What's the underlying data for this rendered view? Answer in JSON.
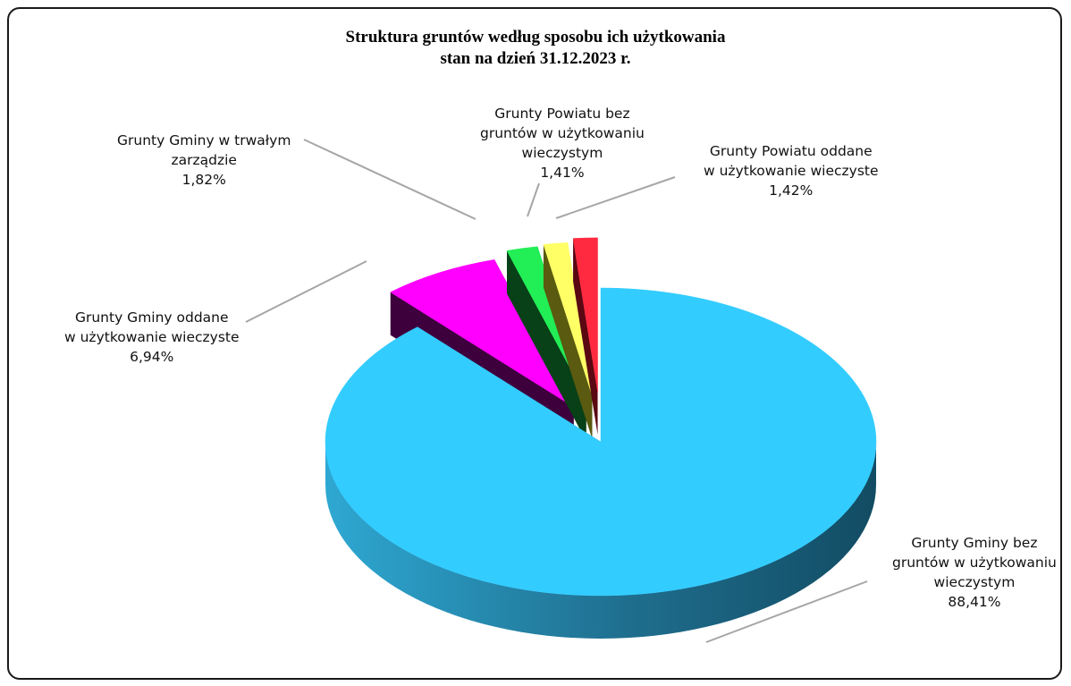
{
  "chart_data": {
    "type": "pie",
    "style": "3d-exploded",
    "title": "Struktura gruntów według sposobu ich użytkowania",
    "subtitle": "stan na dzień 31.12.2023 r.",
    "slices": [
      {
        "label_lines": [
          "Grunty Gminy bez",
          "gruntów w użytkowaniu",
          "wieczystym"
        ],
        "value": 88.41,
        "value_text": "88,41%",
        "color": "#33CCFF",
        "side_light": "#2EA8D2",
        "side_dark": "#124C63"
      },
      {
        "label_lines": [
          "Grunty Gminy oddane",
          "w użytkowanie wieczyste"
        ],
        "value": 6.94,
        "value_text": "6,94%",
        "color": "#FF00FF",
        "side_light": "#5C0A5C",
        "side_dark": "#3D003D"
      },
      {
        "label_lines": [
          "Grunty Gminy w trwałym",
          "zarządzie"
        ],
        "value": 1.82,
        "value_text": "1,82%",
        "color": "#22EE55",
        "side_light": "#0E6B2A",
        "side_dark": "#084018"
      },
      {
        "label_lines": [
          "Grunty Powiatu bez",
          "gruntów w użytkowaniu",
          "wieczystym"
        ],
        "value": 1.41,
        "value_text": "1,41%",
        "color": "#FFFF66",
        "side_light": "#8A8A1F",
        "side_dark": "#5A5A10"
      },
      {
        "label_lines": [
          "Grunty Powiatu oddane",
          "w użytkowanie wieczyste"
        ],
        "value": 1.42,
        "value_text": "1,42%",
        "color": "#FF2A40",
        "side_light": "#8A1020",
        "side_dark": "#5A0812"
      }
    ]
  }
}
